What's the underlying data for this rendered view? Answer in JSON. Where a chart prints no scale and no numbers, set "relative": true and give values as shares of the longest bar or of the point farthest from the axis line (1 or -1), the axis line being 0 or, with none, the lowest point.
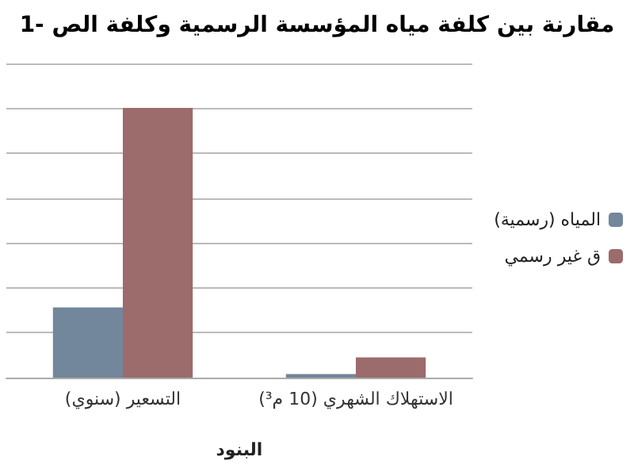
{
  "chart_data": {
    "type": "bar",
    "title": "1- مقارنة بين كلفة مياه المؤسسة الرسمية وكلفة الص",
    "xlabel": "البنود",
    "categories": [
      "التسعير (سنوي)",
      "الاستهلاك الشهري (10 م³)"
    ],
    "series": [
      {
        "name": "المياه (رسمية)",
        "color": "#72869c",
        "values": [
          0.26,
          0.013
        ]
      },
      {
        "name": "ق غير رسمي",
        "color": "#9c6b6b",
        "values": [
          1,
          0.075
        ]
      }
    ],
    "relative": true,
    "grid": "y",
    "legend": "right"
  }
}
